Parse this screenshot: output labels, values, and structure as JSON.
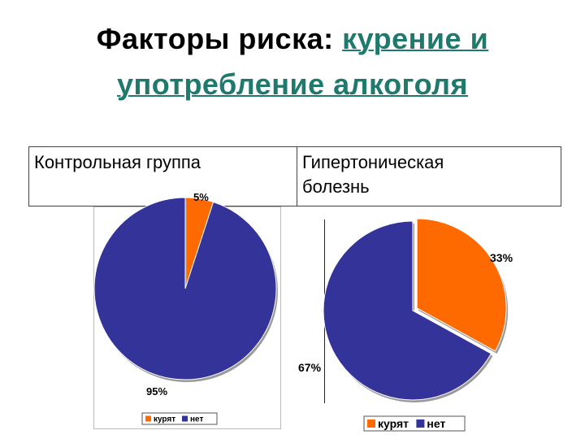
{
  "title": {
    "plain": "Факторы риска: ",
    "link_line1": "курение и",
    "link_line2": "употребление алкоголя"
  },
  "labels": {
    "left": "Контрольная группа",
    "right_line1": "Гипертоническая",
    "right_line2": "болезнь"
  },
  "colors": {
    "smoke": "#ff6a00",
    "no": "#333399"
  },
  "chart_data": [
    {
      "type": "pie",
      "categories": [
        "курят",
        "нет"
      ],
      "values": [
        5,
        95
      ],
      "data_labels": [
        "5%",
        "95%"
      ],
      "legend": [
        "курят",
        "нет"
      ],
      "legend_placement": "bottom"
    },
    {
      "type": "pie",
      "categories": [
        "курят",
        "нет"
      ],
      "values": [
        33,
        67
      ],
      "data_labels": [
        "33%",
        "67%"
      ],
      "legend": [
        "курят",
        "нет"
      ],
      "legend_placement": "bottom",
      "exploded": "курят"
    }
  ]
}
